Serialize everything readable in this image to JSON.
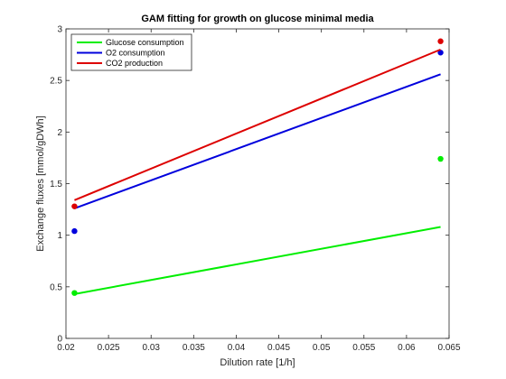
{
  "chart_data": {
    "type": "line",
    "title": "GAM fitting for growth on glucose minimal media",
    "xlabel": "Dilution rate [1/h]",
    "ylabel": "Exchange fluxes [mmol/gDWh]",
    "xlim": [
      0.02,
      0.065
    ],
    "ylim": [
      0,
      3
    ],
    "xticks": [
      0.02,
      0.025,
      0.03,
      0.035,
      0.04,
      0.045,
      0.05,
      0.055,
      0.06,
      0.065
    ],
    "xtick_labels": [
      "0.02",
      "0.025",
      "0.03",
      "0.035",
      "0.04",
      "0.045",
      "0.05",
      "0.055",
      "0.06",
      "0.065"
    ],
    "yticks": [
      0,
      0.5,
      1,
      1.5,
      2,
      2.5,
      3
    ],
    "ytick_labels": [
      "0",
      "0.5",
      "1",
      "1.5",
      "2",
      "2.5",
      "3"
    ],
    "grid": false,
    "legend_position": "top-left",
    "series": [
      {
        "name": "Glucose consumption",
        "color": "#00ee00",
        "line": {
          "x": [
            0.021,
            0.064
          ],
          "y": [
            0.43,
            1.08
          ]
        },
        "points": {
          "x": [
            0.021,
            0.064
          ],
          "y": [
            0.44,
            1.74
          ]
        }
      },
      {
        "name": "O2 consumption",
        "color": "#0000dd",
        "line": {
          "x": [
            0.021,
            0.064
          ],
          "y": [
            1.26,
            2.56
          ]
        },
        "points": {
          "x": [
            0.021,
            0.064
          ],
          "y": [
            1.04,
            2.77
          ]
        }
      },
      {
        "name": "CO2 production",
        "color": "#dd0000",
        "line": {
          "x": [
            0.021,
            0.064
          ],
          "y": [
            1.34,
            2.8
          ]
        },
        "points": {
          "x": [
            0.021,
            0.064
          ],
          "y": [
            1.28,
            2.88
          ]
        }
      }
    ]
  }
}
